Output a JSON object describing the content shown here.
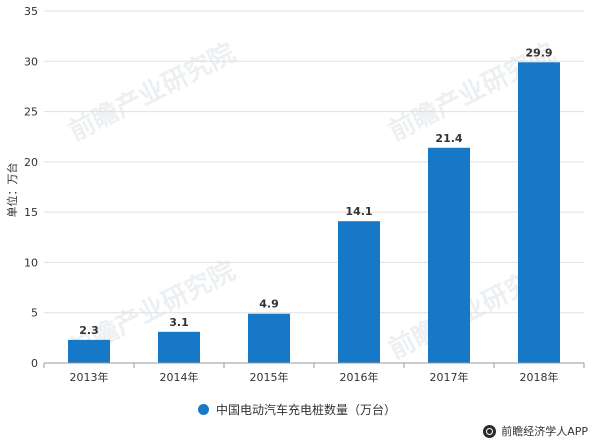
{
  "chart_data": {
    "type": "bar",
    "categories": [
      "2013年",
      "2014年",
      "2015年",
      "2016年",
      "2017年",
      "2018年"
    ],
    "series": [
      {
        "name": "中国电动汽车充电桩数量（万台）",
        "values": [
          2.3,
          3.1,
          4.9,
          14.1,
          21.4,
          29.9
        ]
      }
    ],
    "value_labels": [
      "2.3",
      "3.1",
      "4.9",
      "14.1",
      "21.4",
      "29.9"
    ],
    "title": "",
    "xlabel": "",
    "ylabel": "单位：万台",
    "ylim": [
      0,
      35
    ],
    "yticks": [
      0,
      5,
      10,
      15,
      20,
      25,
      30,
      35
    ],
    "grid": true,
    "legend_position": "bottom"
  },
  "colors": {
    "bar": "#1878C8",
    "grid": "#E0E0E0",
    "text": "#333333"
  },
  "credit": {
    "text": "前瞻经济学人APP"
  },
  "watermark": {
    "text": "前瞻产业研究院"
  }
}
